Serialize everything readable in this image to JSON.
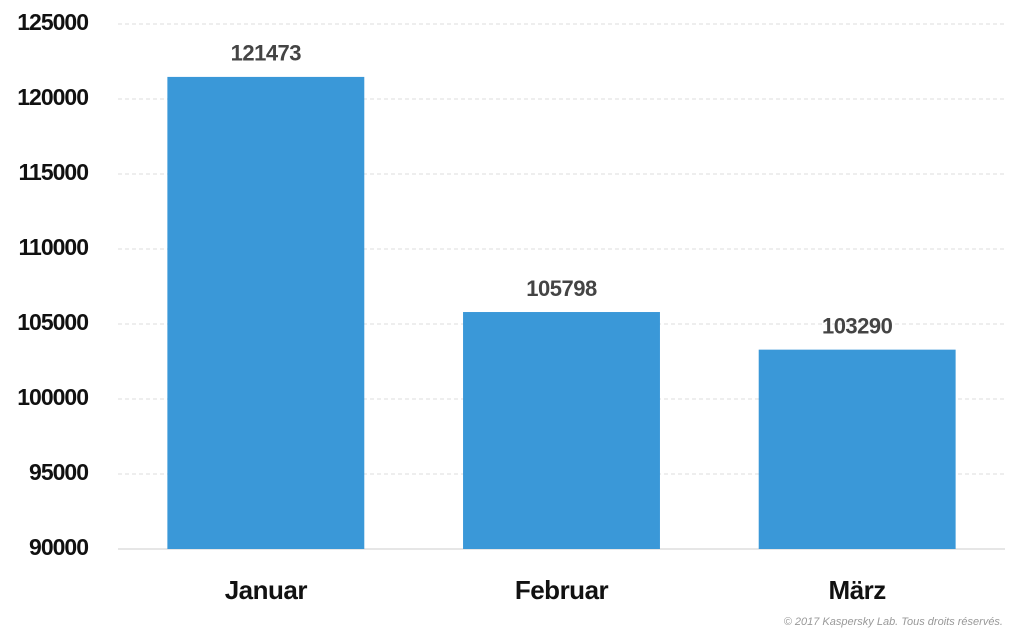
{
  "chart_data": {
    "type": "bar",
    "categories": [
      "Januar",
      "Februar",
      "März"
    ],
    "values": [
      121473,
      105798,
      103290
    ],
    "color": "#3a98d8",
    "ylim": [
      90000,
      125000
    ],
    "yticks": [
      90000,
      95000,
      100000,
      105000,
      110000,
      115000,
      120000,
      125000
    ],
    "grid": true,
    "footnote": "© 2017 Kaspersky Lab. Tous droits réservés."
  }
}
